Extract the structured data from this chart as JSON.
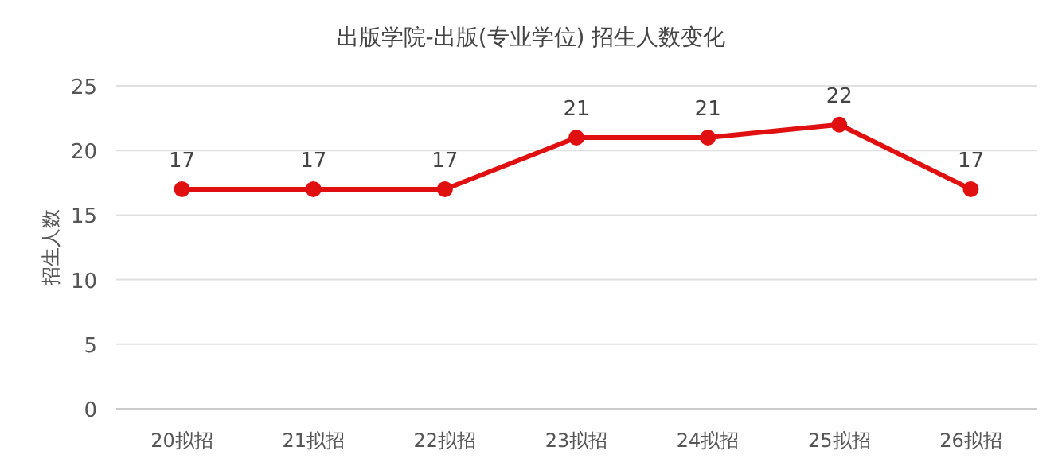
{
  "chart_data": {
    "type": "line",
    "title": "出版学院-出版(专业学位) 招生人数变化",
    "ylabel": "招生人数",
    "categories": [
      "20拟招",
      "21拟招",
      "22拟招",
      "23拟招",
      "24拟招",
      "25拟招",
      "26拟招"
    ],
    "values": [
      17,
      17,
      17,
      21,
      21,
      22,
      17
    ],
    "color": "#e01010",
    "ylim": [
      0,
      25
    ],
    "yticks": [
      0,
      5,
      10,
      15,
      20,
      25
    ],
    "grid": "y",
    "data_labels": true,
    "marker": "circle"
  }
}
